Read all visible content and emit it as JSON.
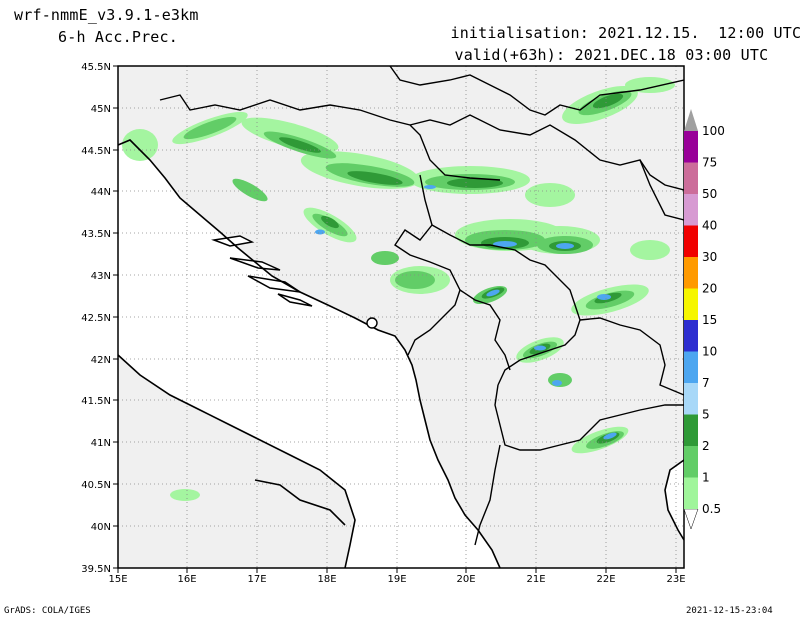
{
  "header": {
    "model": "wrf-nmmE_v3.9.1-e3km",
    "field": "6-h Acc.Prec.",
    "init_label": "initialisation:",
    "init_value": "2021.12.15.  12:00 UTC",
    "valid_label": "valid(+63h):",
    "valid_value": "2021.DEC.18 03:00 UTC"
  },
  "axes": {
    "lat_labels": [
      "45.5N",
      "45N",
      "44.5N",
      "44N",
      "43.5N",
      "43N",
      "42.5N",
      "42N",
      "41.5N",
      "41N",
      "40.5N",
      "40N",
      "39.5N"
    ],
    "lon_labels": [
      "15E",
      "16E",
      "17E",
      "18E",
      "19E",
      "20E",
      "21E",
      "22E",
      "23E"
    ]
  },
  "colorbar": {
    "levels": [
      {
        "label": "0.5",
        "color": "#a0f59b"
      },
      {
        "label": "1",
        "color": "#62cd67"
      },
      {
        "label": "2",
        "color": "#2f9a37"
      },
      {
        "label": "5",
        "color": "#a8d8f8"
      },
      {
        "label": "7",
        "color": "#4da6f0"
      },
      {
        "label": "10",
        "color": "#2d2ed0"
      },
      {
        "label": "15",
        "color": "#f6f600"
      },
      {
        "label": "20",
        "color": "#ff9a00"
      },
      {
        "label": "30",
        "color": "#f00000"
      },
      {
        "label": "40",
        "color": "#d79ad2"
      },
      {
        "label": "50",
        "color": "#cc6d9a"
      },
      {
        "label": "75",
        "color": "#990099"
      },
      {
        "label": "100",
        "color": "#a0a0a0"
      }
    ]
  },
  "colors": {
    "land": "#f0f0f0",
    "sea": "#ffffff",
    "light_green": "#a0f59b",
    "mid_green": "#62cd67",
    "dark_green": "#2f9a37",
    "light_blue": "#a8d8f8",
    "blue": "#4da6f0"
  },
  "footer": {
    "left": "GrADS: COLA/IGES",
    "right": "2021-12-15-23:04"
  }
}
